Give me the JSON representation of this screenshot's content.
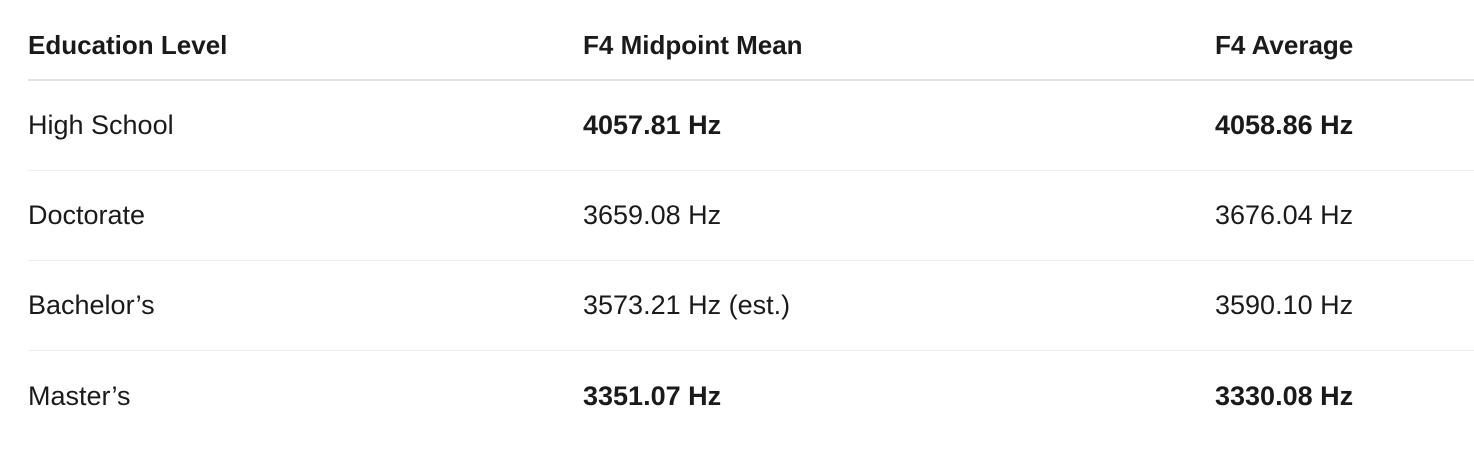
{
  "table": {
    "headers": [
      "Education Level",
      "F4 Midpoint Mean",
      "F4 Average"
    ],
    "rows": [
      {
        "level": "High School",
        "midpoint_mean": "4057.81 Hz",
        "average": "4058.86 Hz",
        "bold": true
      },
      {
        "level": "Doctorate",
        "midpoint_mean": "3659.08 Hz",
        "average": "3676.04 Hz",
        "bold": false
      },
      {
        "level": "Bachelor’s",
        "midpoint_mean": "3573.21 Hz (est.)",
        "average": "3590.10 Hz",
        "bold": false
      },
      {
        "level": "Master’s",
        "midpoint_mean": "3351.07 Hz",
        "average": "3330.08 Hz",
        "bold": true
      }
    ]
  }
}
